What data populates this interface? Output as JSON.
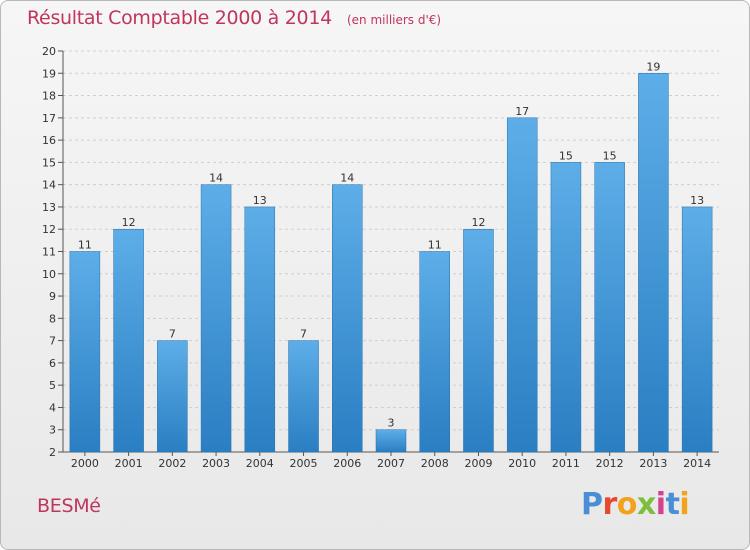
{
  "header": {
    "title": "Résultat Comptable 2000 à 2014",
    "subtitle": "(en milliers d'€)"
  },
  "footer": {
    "commune": "BESMé",
    "logo_text": "Proxiti"
  },
  "colors": {
    "bar_light": "#5daee8",
    "bar_dark": "#2a7ec2",
    "title": "#c0355c"
  },
  "chart_data": {
    "type": "bar",
    "title": "Résultat Comptable 2000 à 2014",
    "subtitle": "(en milliers d'€)",
    "xlabel": "",
    "ylabel": "",
    "categories": [
      "2000",
      "2001",
      "2002",
      "2003",
      "2004",
      "2005",
      "2006",
      "2007",
      "2008",
      "2009",
      "2010",
      "2011",
      "2012",
      "2013",
      "2014"
    ],
    "values": [
      11,
      12,
      7,
      14,
      13,
      7,
      14,
      3,
      11,
      12,
      17,
      15,
      15,
      19,
      13
    ],
    "ylim": [
      2,
      20
    ],
    "yticks": [
      2,
      3,
      4,
      5,
      6,
      7,
      8,
      9,
      10,
      11,
      12,
      13,
      14,
      15,
      16,
      17,
      18,
      19,
      20
    ],
    "grid": true,
    "legend": "none"
  }
}
